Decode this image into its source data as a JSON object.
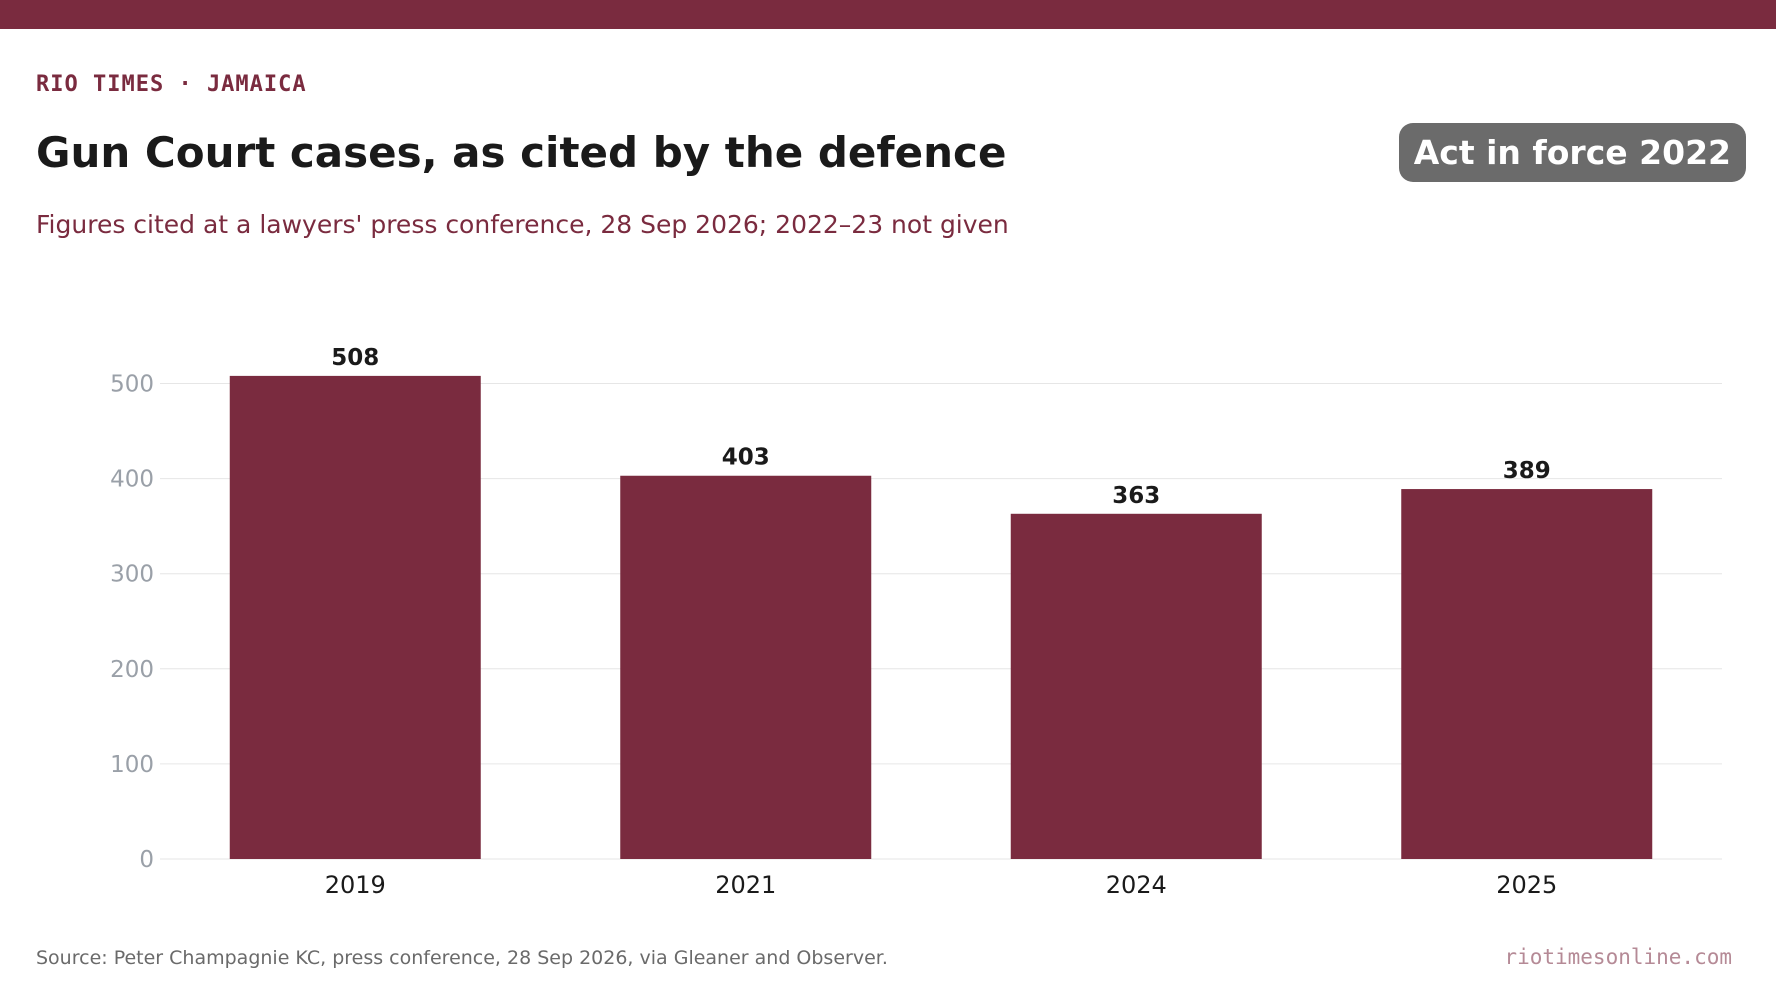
{
  "header": {
    "kicker": "RIO TIMES · JAMAICA",
    "title": "Gun Court cases, as cited by the defence",
    "subtitle": "Figures cited at a lawyers' press conference, 28 Sep 2026; 2022–23 not given",
    "badge": "Act in force 2022"
  },
  "footer": {
    "source": "Source: Peter Champagnie KC, press conference, 28 Sep 2026, via Gleaner and Observer.",
    "site": "riotimesonline.com"
  },
  "colors": {
    "brand": "#7a2b3f",
    "bar": "#7a2b3f",
    "badge": "#6b6b6b",
    "grid": "#e6e6e6",
    "tick": "#9aa0a8"
  },
  "chart_data": {
    "type": "bar",
    "categories": [
      "2019",
      "2021",
      "2024",
      "2025"
    ],
    "values": [
      508,
      403,
      363,
      389
    ],
    "title": "Gun Court cases, as cited by the defence",
    "xlabel": "",
    "ylabel": "",
    "ylim": [
      0,
      500
    ],
    "yticks": [
      0,
      100,
      200,
      300,
      400,
      500
    ],
    "grid": true,
    "data_labels": true
  }
}
